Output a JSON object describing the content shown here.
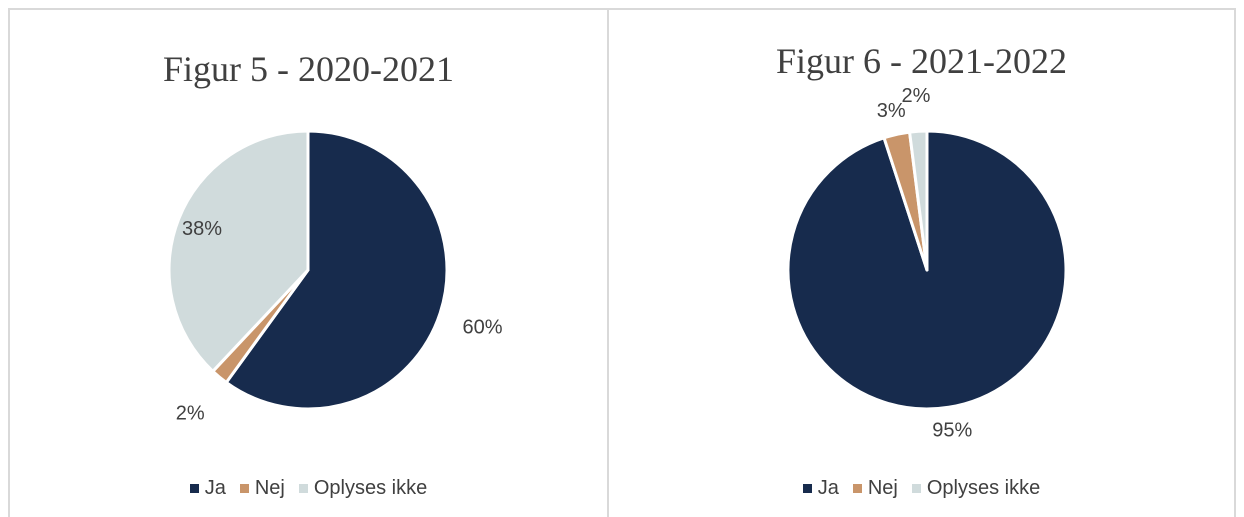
{
  "chart_data": [
    {
      "type": "pie",
      "title": "Figur 5 - 2020-2021",
      "categories": [
        "Ja",
        "Nej",
        "Oplyses ikke"
      ],
      "values": [
        60,
        2,
        38
      ],
      "labels": [
        "60%",
        "2%",
        "38%"
      ],
      "colors": [
        "#172b4d",
        "#c9956a",
        "#d0dbdc"
      ],
      "legend": "bottom"
    },
    {
      "type": "pie",
      "title": "Figur 6 - 2021-2022",
      "categories": [
        "Ja",
        "Nej",
        "Oplyses ikke"
      ],
      "values": [
        95,
        3,
        2
      ],
      "labels": [
        "95%",
        "3%",
        "2%"
      ],
      "colors": [
        "#172b4d",
        "#c9956a",
        "#d0dbdc"
      ],
      "legend": "bottom"
    }
  ]
}
